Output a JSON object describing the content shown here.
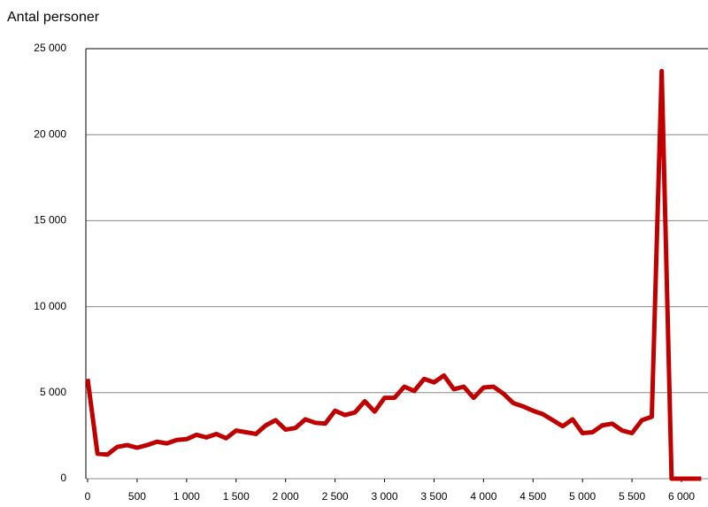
{
  "chart_data": {
    "type": "line",
    "title": "Antal personer",
    "x": [
      0,
      100,
      200,
      300,
      400,
      500,
      600,
      700,
      800,
      900,
      1000,
      1100,
      1200,
      1300,
      1400,
      1500,
      1600,
      1700,
      1800,
      1900,
      2000,
      2100,
      2200,
      2300,
      2400,
      2500,
      2600,
      2700,
      2800,
      2900,
      3000,
      3100,
      3200,
      3300,
      3400,
      3500,
      3600,
      3700,
      3800,
      3900,
      4000,
      4100,
      4200,
      4300,
      4400,
      4500,
      4600,
      4700,
      4800,
      4900,
      5000,
      5100,
      5200,
      5300,
      5400,
      5500,
      5600,
      5700,
      5800,
      5900,
      6000,
      6100,
      6200
    ],
    "series": [
      {
        "color": "#c00000",
        "values": [
          5800,
          1450,
          1400,
          1850,
          1950,
          1800,
          1950,
          2150,
          2050,
          2250,
          2300,
          2550,
          2400,
          2600,
          2350,
          2800,
          2700,
          2600,
          3100,
          3400,
          2850,
          2950,
          3450,
          3250,
          3200,
          3950,
          3700,
          3850,
          4500,
          3900,
          4700,
          4700,
          5350,
          5100,
          5800,
          5600,
          6000,
          5200,
          5350,
          4700,
          5300,
          5350,
          4950,
          4400,
          4200,
          3950,
          3750,
          3400,
          3050,
          3450,
          2650,
          2700,
          3100,
          3200,
          2800,
          2650,
          3400,
          3600,
          23700,
          0,
          0,
          0,
          0
        ]
      }
    ],
    "xlim": [
      0,
      6250
    ],
    "ylim": [
      0,
      25000
    ],
    "xticks": [
      0,
      500,
      {
        "value": 1000,
        "label": "1 000"
      },
      {
        "value": 1500,
        "label": "1 500"
      },
      {
        "value": 2000,
        "label": "2 000"
      },
      {
        "value": 2500,
        "label": "2 500"
      },
      {
        "value": 3000,
        "label": "3 000"
      },
      {
        "value": 3500,
        "label": "3 500"
      },
      {
        "value": 4000,
        "label": "4 000"
      },
      {
        "value": 4500,
        "label": "4 500"
      },
      {
        "value": 5000,
        "label": "5 000"
      },
      {
        "value": 5500,
        "label": "5 500"
      },
      {
        "value": 6000,
        "label": "6 000"
      }
    ],
    "yticks": [
      0,
      {
        "value": 5000,
        "label": "5 000"
      },
      {
        "value": 10000,
        "label": "10 000"
      },
      {
        "value": 15000,
        "label": "15 000"
      },
      {
        "value": 20000,
        "label": "20 000"
      },
      {
        "value": 25000,
        "label": "25 000"
      }
    ],
    "grid": true
  }
}
